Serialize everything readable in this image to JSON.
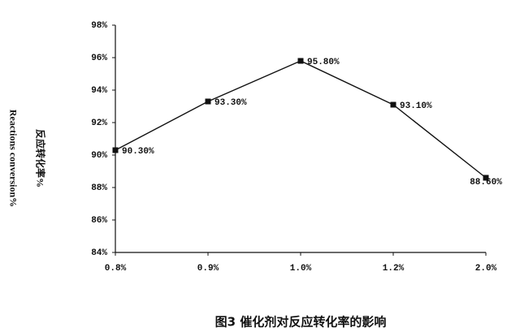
{
  "chart_data": {
    "type": "line",
    "y_label": "反应转化率%",
    "y_label_en": "Reactions conversion%",
    "caption": "图3  催化剂对反应转化率的影响",
    "categories": [
      "0.8%",
      "0.9%",
      "1.0%",
      "1.2%",
      "2.0%"
    ],
    "values": [
      90.3,
      93.3,
      95.8,
      93.1,
      88.6
    ],
    "value_labels": [
      "90.30%",
      "93.30%",
      "95.80%",
      "93.10%",
      "88.60%"
    ],
    "color": "#111111",
    "ylim": [
      84,
      98
    ],
    "yticks": [
      {
        "value": 84,
        "label": "84%"
      },
      {
        "value": 86,
        "label": "86%"
      },
      {
        "value": 88,
        "label": "88%"
      },
      {
        "value": 90,
        "label": "90%"
      },
      {
        "value": 92,
        "label": "92%"
      },
      {
        "value": 94,
        "label": "94%"
      },
      {
        "value": 96,
        "label": "96%"
      },
      {
        "value": 98,
        "label": "98%"
      }
    ]
  }
}
